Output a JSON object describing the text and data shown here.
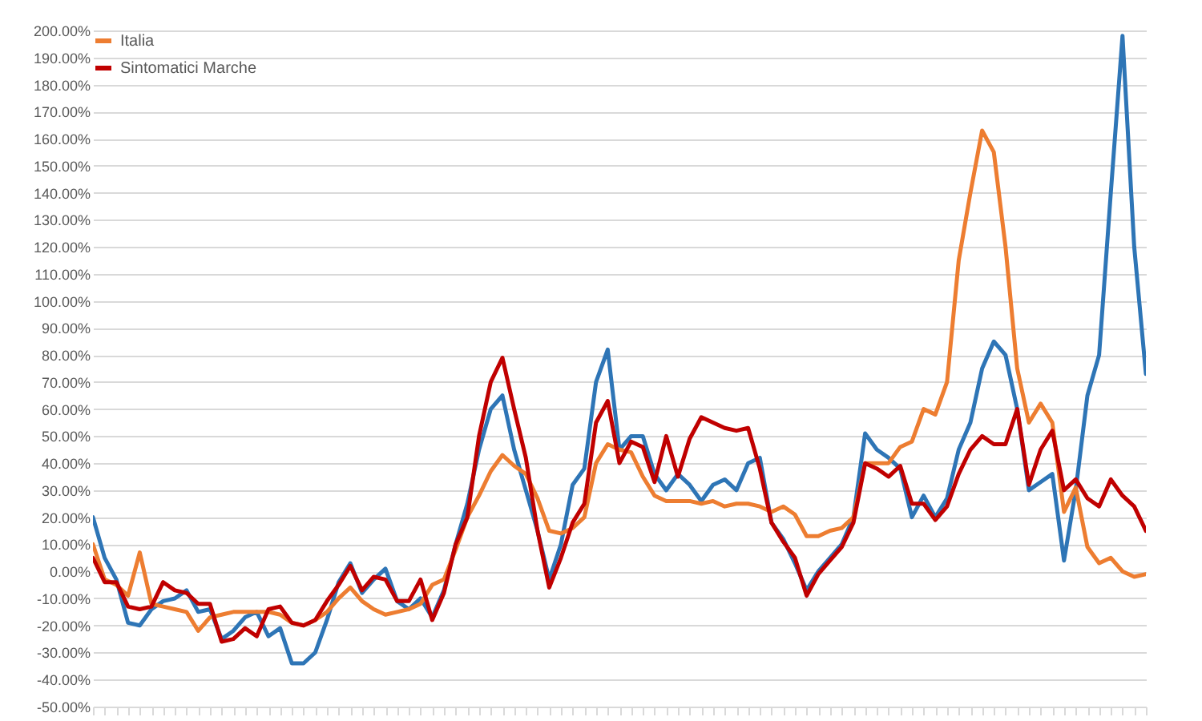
{
  "chart_data": {
    "type": "line",
    "categories": [
      null,
      null,
      null,
      null,
      null,
      null,
      null,
      null,
      null,
      null,
      null,
      null,
      null,
      null,
      null,
      null,
      null,
      null,
      null,
      null,
      null,
      null,
      null,
      null,
      null,
      null,
      null,
      null,
      null,
      null,
      null,
      null,
      null,
      null,
      null,
      null,
      null,
      null,
      null,
      null,
      null,
      null,
      null,
      null,
      null,
      null,
      null,
      null,
      null,
      null,
      null,
      null,
      null,
      null,
      null,
      null,
      null,
      null,
      null,
      null,
      null,
      null,
      null,
      null,
      null,
      null,
      null,
      null,
      null,
      null,
      null,
      null,
      null,
      null,
      null,
      null,
      null,
      null,
      null,
      null,
      null,
      null,
      null,
      null,
      null,
      null,
      null,
      null,
      null,
      null,
      null
    ],
    "series": [
      {
        "color": "#2e75b6",
        "values": [
          20,
          5,
          -3,
          -19,
          -20,
          -14,
          -11,
          -10,
          -7,
          -15,
          -14,
          -25,
          -22,
          -17,
          -15,
          -24,
          -21,
          -34,
          -34,
          -30,
          -18,
          -4,
          3,
          -8,
          -3,
          1,
          -11,
          -14,
          -10,
          -17,
          -7,
          10,
          25,
          45,
          60,
          65,
          45,
          30,
          15,
          -3,
          10,
          32,
          38,
          70,
          82,
          45,
          50,
          50,
          36,
          30,
          36,
          32,
          26,
          32,
          34,
          30,
          40,
          42,
          18,
          12,
          3,
          -7,
          0,
          5,
          10,
          20,
          51,
          45,
          42,
          38,
          20,
          28,
          20,
          27,
          45,
          55,
          75,
          85,
          80,
          60,
          30,
          33,
          36,
          4,
          30,
          65,
          80,
          140,
          198,
          120,
          73
        ]
      },
      {
        "name": "Italia",
        "color": "#ed7d31",
        "values": [
          10,
          -3,
          -5,
          -9,
          7,
          -12,
          -13,
          -14,
          -15,
          -22,
          -17,
          -16,
          -15,
          -15,
          -15,
          -15,
          -16,
          -19,
          -20,
          -18,
          -15,
          -10,
          -6,
          -11,
          -14,
          -16,
          -15,
          -14,
          -12,
          -5,
          -3,
          8,
          20,
          28,
          37,
          43,
          39,
          36,
          27,
          15,
          14,
          16,
          20,
          40,
          47,
          45,
          44,
          35,
          28,
          26,
          26,
          26,
          25,
          26,
          24,
          25,
          25,
          24,
          22,
          24,
          21,
          13,
          13,
          15,
          16,
          20,
          40,
          40,
          40,
          46,
          48,
          60,
          58,
          70,
          115,
          140,
          163,
          155,
          120,
          75,
          55,
          62,
          55,
          22,
          31,
          9,
          3,
          5,
          0,
          -2,
          -1
        ]
      },
      {
        "name": "Sintomatici Marche",
        "color": "#c00000",
        "values": [
          5,
          -4,
          -4,
          -13,
          -14,
          -13,
          -4,
          -7,
          -8,
          -12,
          -12,
          -26,
          -25,
          -21,
          -24,
          -14,
          -13,
          -19,
          -20,
          -18,
          -11,
          -5,
          2,
          -7,
          -2,
          -3,
          -11,
          -11,
          -3,
          -18,
          -8,
          10,
          20,
          50,
          70,
          79,
          60,
          42,
          15,
          -6,
          5,
          18,
          25,
          55,
          63,
          40,
          48,
          46,
          33,
          50,
          35,
          49,
          57,
          55,
          53,
          52,
          53,
          38,
          18,
          11,
          5,
          -9,
          -1,
          4,
          9,
          18,
          40,
          38,
          35,
          39,
          25,
          25,
          19,
          24,
          36,
          45,
          50,
          47,
          47,
          60,
          32,
          45,
          52,
          30,
          34,
          27,
          24,
          34,
          28,
          24,
          15
        ]
      }
    ],
    "ylim": [
      -50,
      200
    ],
    "yticks": [
      {
        "value": -50,
        "label": "-50.00%"
      },
      {
        "value": -40,
        "label": "-40.00%"
      },
      {
        "value": -30,
        "label": "-30.00%"
      },
      {
        "value": -20,
        "label": "-20.00%"
      },
      {
        "value": -10,
        "label": "-10.00%"
      },
      {
        "value": 0,
        "label": "0.00%"
      },
      {
        "value": 10,
        "label": "10.00%"
      },
      {
        "value": 20,
        "label": "20.00%"
      },
      {
        "value": 30,
        "label": "30.00%"
      },
      {
        "value": 40,
        "label": "40.00%"
      },
      {
        "value": 50,
        "label": "50.00%"
      },
      {
        "value": 60,
        "label": "60.00%"
      },
      {
        "value": 70,
        "label": "70.00%"
      },
      {
        "value": 80,
        "label": "80.00%"
      },
      {
        "value": 90,
        "label": "90.00%"
      },
      {
        "value": 100,
        "label": "100.00%"
      },
      {
        "value": 110,
        "label": "110.00%"
      },
      {
        "value": 120,
        "label": "120.00%"
      },
      {
        "value": 130,
        "label": "130.00%"
      },
      {
        "value": 140,
        "label": "140.00%"
      },
      {
        "value": 150,
        "label": "150.00%"
      },
      {
        "value": 160,
        "label": "160.00%"
      },
      {
        "value": 170,
        "label": "170.00%"
      },
      {
        "value": 180,
        "label": "180.00%"
      },
      {
        "value": 190,
        "label": "190.00%"
      },
      {
        "value": 200,
        "label": "200.00%"
      }
    ],
    "grid": "y",
    "legend": "top left",
    "tick_labels": "y"
  }
}
